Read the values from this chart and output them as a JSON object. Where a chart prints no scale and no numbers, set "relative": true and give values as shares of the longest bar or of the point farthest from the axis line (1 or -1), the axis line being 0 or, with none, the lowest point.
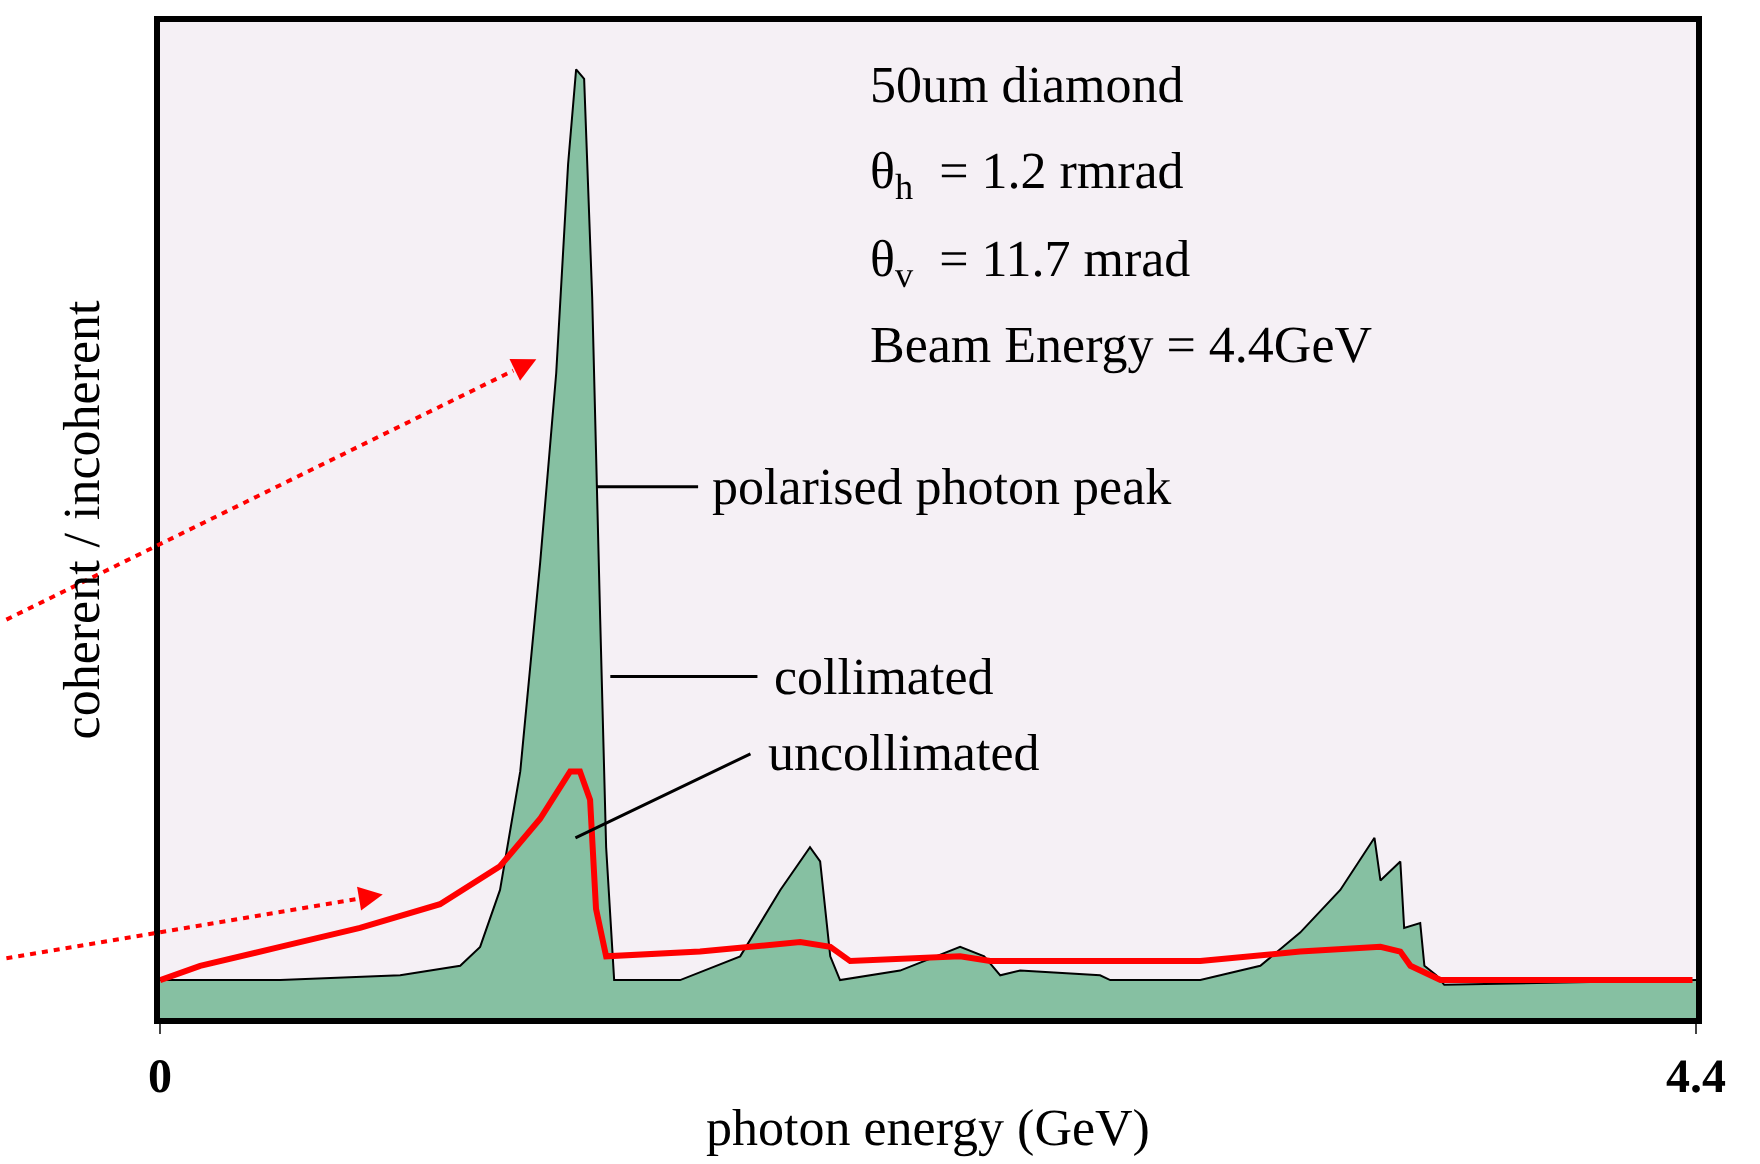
{
  "chart_data": {
    "type": "area",
    "relative": true,
    "xlabel": "photon energy (GeV)",
    "ylabel": "coherent / incoherent",
    "xlim": [
      0,
      4.4
    ],
    "xticks": [
      0,
      4.4
    ],
    "grid": false,
    "series": [
      {
        "name": "collimated",
        "color": "#86c0a2",
        "x": [
          0,
          0.344,
          0.688,
          0.86,
          0.917,
          0.974,
          1.032,
          1.089,
          1.135,
          1.169,
          1.192,
          1.215,
          1.238,
          1.261,
          1.278,
          1.301,
          1.49,
          1.662,
          1.777,
          1.862,
          1.891,
          1.92,
          1.948,
          2.12,
          2.292,
          2.361,
          2.407,
          2.464,
          2.693,
          2.722,
          2.98,
          3.152,
          3.266,
          3.381,
          3.479,
          3.496,
          3.553,
          3.564,
          3.61,
          3.622,
          3.656,
          3.679,
          4.4
        ],
        "values": [
          0.04,
          0.04,
          0.045,
          0.055,
          0.075,
          0.135,
          0.26,
          0.48,
          0.68,
          0.9,
          1.0,
          0.99,
          0.76,
          0.42,
          0.18,
          0.04,
          0.04,
          0.065,
          0.135,
          0.18,
          0.165,
          0.065,
          0.04,
          0.05,
          0.075,
          0.065,
          0.045,
          0.05,
          0.045,
          0.04,
          0.04,
          0.055,
          0.09,
          0.135,
          0.19,
          0.145,
          0.165,
          0.095,
          0.1,
          0.055,
          0.045,
          0.035,
          0.04
        ]
      },
      {
        "name": "uncollimated",
        "type": "line",
        "color": "#ff0000",
        "x": [
          0,
          0.115,
          0.344,
          0.573,
          0.802,
          0.974,
          1.089,
          1.175,
          1.203,
          1.232,
          1.249,
          1.278,
          1.547,
          1.834,
          1.92,
          1.977,
          2.292,
          2.378,
          2.98,
          3.266,
          3.496,
          3.553,
          3.582,
          3.668,
          4.39
        ],
        "values": [
          0.04,
          0.055,
          0.075,
          0.095,
          0.12,
          0.16,
          0.21,
          0.26,
          0.26,
          0.23,
          0.115,
          0.065,
          0.07,
          0.08,
          0.075,
          0.06,
          0.065,
          0.06,
          0.06,
          0.07,
          0.075,
          0.07,
          0.055,
          0.04,
          0.04
        ]
      }
    ],
    "annotations": [
      "50um diamond",
      "θ$_{h}$  = 1.2 rmrad",
      "θ$_{v}$  = 11.7 mrad",
      "Beam Energy = 4.4GeV",
      {
        "text": "polarised photon peak",
        "x": 1.25,
        "y": 0.56
      }
    ]
  }
}
